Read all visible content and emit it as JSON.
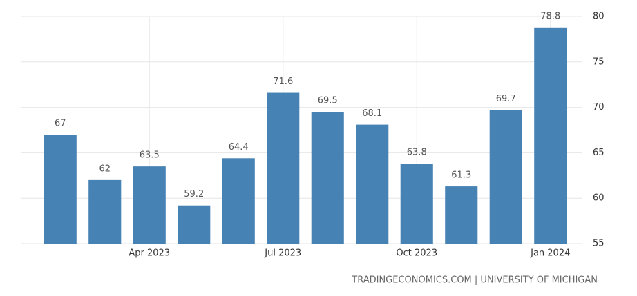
{
  "chart_data": {
    "type": "bar",
    "categories": [
      null,
      null,
      "Apr 2023",
      null,
      null,
      "Jul 2023",
      null,
      null,
      "Oct 2023",
      null,
      null,
      "Jan 2024"
    ],
    "values": [
      67,
      62,
      63.5,
      59.2,
      64.4,
      71.6,
      69.5,
      68.1,
      63.8,
      61.3,
      69.7,
      78.8
    ],
    "color": "#4682b4",
    "ylim": [
      55,
      80
    ],
    "yticks": [
      55,
      60,
      65,
      70,
      75,
      80
    ],
    "grid": true,
    "source": "TRADINGECONOMICS.COM | UNIVERSITY OF MICHIGAN"
  }
}
